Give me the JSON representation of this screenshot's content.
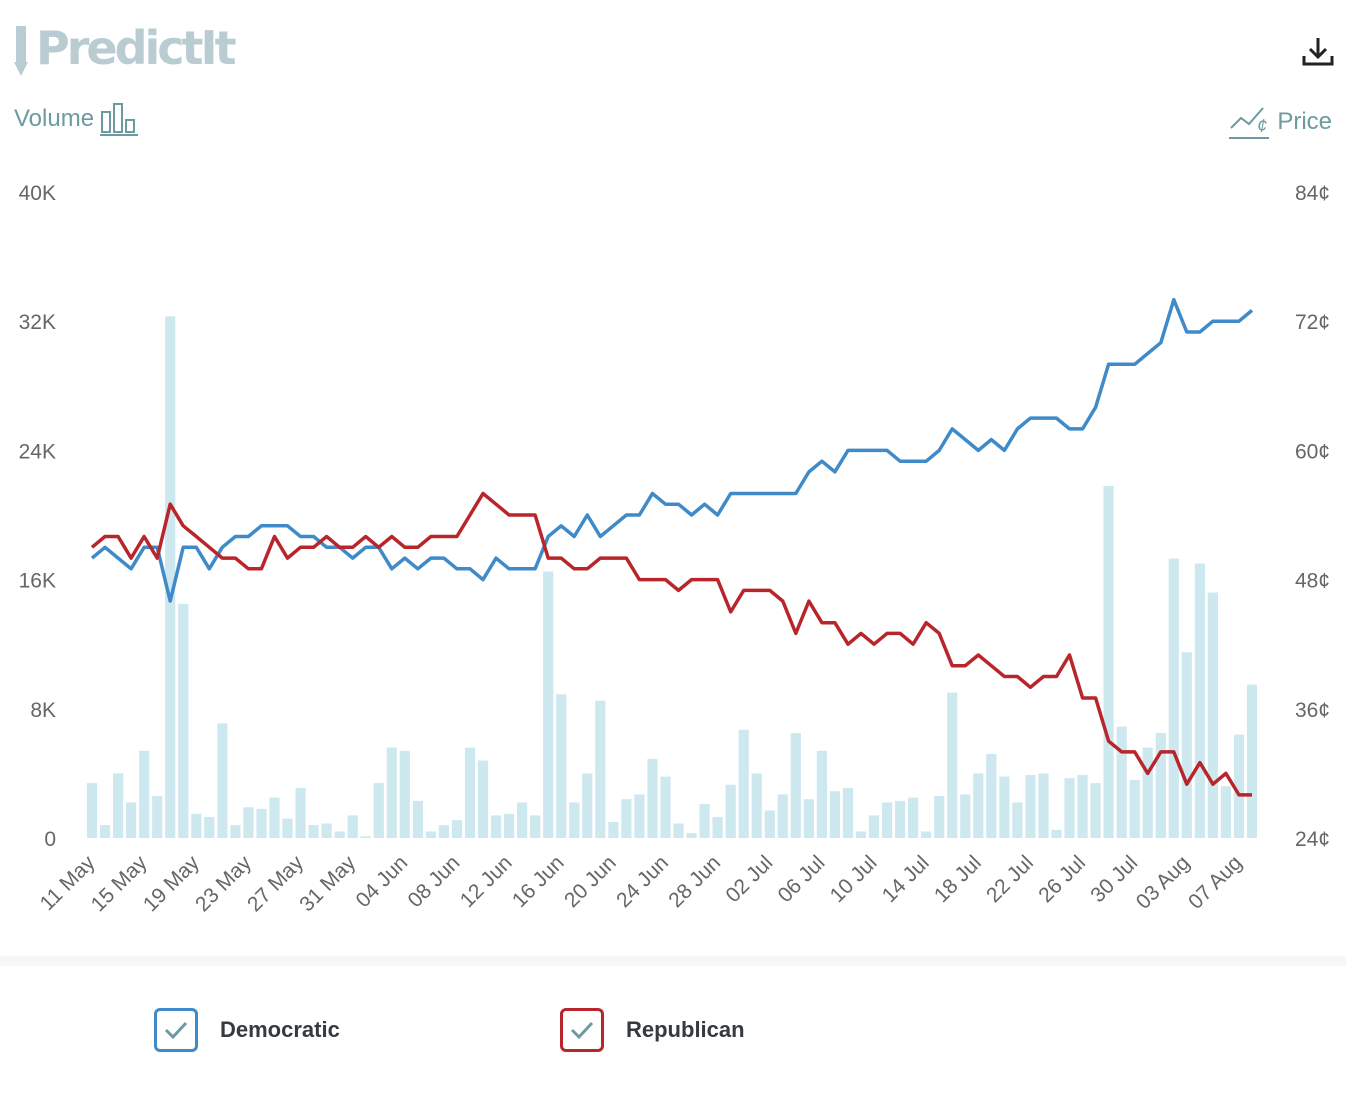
{
  "header": {
    "logo_text": "PredictIt",
    "volume_label": "Volume",
    "price_label": "Price",
    "download_icon": "download-icon"
  },
  "colors": {
    "democratic": "#3f8ac8",
    "republican": "#b8262b",
    "volume_bar": "#cde8ee",
    "axis_text": "#666666",
    "accent": "#6c9aa0"
  },
  "chart_data": {
    "type": "bar+line",
    "x": [
      "11 May",
      "12 May",
      "13 May",
      "14 May",
      "15 May",
      "16 May",
      "17 May",
      "18 May",
      "19 May",
      "20 May",
      "21 May",
      "22 May",
      "23 May",
      "24 May",
      "25 May",
      "26 May",
      "27 May",
      "28 May",
      "29 May",
      "30 May",
      "31 May",
      "01 Jun",
      "02 Jun",
      "03 Jun",
      "04 Jun",
      "05 Jun",
      "06 Jun",
      "07 Jun",
      "08 Jun",
      "09 Jun",
      "10 Jun",
      "11 Jun",
      "12 Jun",
      "13 Jun",
      "14 Jun",
      "15 Jun",
      "16 Jun",
      "17 Jun",
      "18 Jun",
      "19 Jun",
      "20 Jun",
      "21 Jun",
      "22 Jun",
      "23 Jun",
      "24 Jun",
      "25 Jun",
      "26 Jun",
      "27 Jun",
      "28 Jun",
      "29 Jun",
      "30 Jun",
      "01 Jul",
      "02 Jul",
      "03 Jul",
      "04 Jul",
      "05 Jul",
      "06 Jul",
      "07 Jul",
      "08 Jul",
      "09 Jul",
      "10 Jul",
      "11 Jul",
      "12 Jul",
      "13 Jul",
      "14 Jul",
      "15 Jul",
      "16 Jul",
      "17 Jul",
      "18 Jul",
      "19 Jul",
      "20 Jul",
      "21 Jul",
      "22 Jul",
      "23 Jul",
      "24 Jul",
      "25 Jul",
      "26 Jul",
      "27 Jul",
      "28 Jul",
      "29 Jul",
      "30 Jul",
      "31 Jul",
      "01 Aug",
      "02 Aug",
      "03 Aug",
      "04 Aug",
      "05 Aug",
      "06 Aug",
      "07 Aug",
      "08 Aug"
    ],
    "xticks": [
      "11 May",
      "15 May",
      "19 May",
      "23 May",
      "27 May",
      "31 May",
      "04 Jun",
      "08 Jun",
      "12 Jun",
      "16 Jun",
      "20 Jun",
      "24 Jun",
      "28 Jun",
      "02 Jul",
      "06 Jul",
      "10 Jul",
      "14 Jul",
      "18 Jul",
      "22 Jul",
      "26 Jul",
      "30 Jul",
      "03 Aug",
      "07 Aug"
    ],
    "volume": [
      3400,
      800,
      4000,
      2200,
      5400,
      2600,
      32300,
      14500,
      1500,
      1300,
      7100,
      800,
      1900,
      1800,
      2500,
      1200,
      3100,
      800,
      900,
      400,
      1400,
      100,
      3400,
      5600,
      5400,
      2300,
      400,
      800,
      1100,
      5600,
      4800,
      1400,
      1500,
      2200,
      1400,
      16500,
      8900,
      2200,
      4000,
      8500,
      1000,
      2400,
      2700,
      4900,
      3800,
      900,
      300,
      2100,
      1300,
      3300,
      6700,
      4000,
      1700,
      2700,
      6500,
      2400,
      5400,
      2900,
      3100,
      400,
      1400,
      2200,
      2300,
      2500,
      400,
      2600,
      9000,
      2700,
      4000,
      5200,
      3800,
      2200,
      3900,
      4000,
      500,
      3700,
      3900,
      3400,
      21800,
      6900,
      3600,
      5600,
      6500,
      17300,
      11500,
      17000,
      15200,
      3200,
      6400,
      9500
    ],
    "series": [
      {
        "name": "Democratic",
        "values": [
          50,
          51,
          50,
          49,
          51,
          51,
          46,
          51,
          51,
          49,
          51,
          52,
          52,
          53,
          53,
          53,
          52,
          52,
          51,
          51,
          50,
          51,
          51,
          49,
          50,
          49,
          50,
          50,
          49,
          49,
          48,
          50,
          49,
          49,
          49,
          52,
          53,
          52,
          54,
          52,
          53,
          54,
          54,
          56,
          55,
          55,
          54,
          55,
          54,
          56,
          56,
          56,
          56,
          56,
          56,
          58,
          59,
          58,
          60,
          60,
          60,
          60,
          59,
          59,
          59,
          60,
          62,
          61,
          60,
          61,
          60,
          62,
          63,
          63,
          63,
          62,
          62,
          64,
          68,
          68,
          68,
          69,
          70,
          74,
          71,
          71,
          72,
          72,
          72,
          73
        ]
      },
      {
        "name": "Republican",
        "values": [
          51,
          52,
          52,
          50,
          52,
          50,
          55,
          53,
          52,
          51,
          50,
          50,
          49,
          49,
          52,
          50,
          51,
          51,
          52,
          51,
          51,
          52,
          51,
          52,
          51,
          51,
          52,
          52,
          52,
          54,
          56,
          55,
          54,
          54,
          54,
          50,
          50,
          49,
          49,
          50,
          50,
          50,
          48,
          48,
          48,
          47,
          48,
          48,
          48,
          45,
          47,
          47,
          47,
          46,
          43,
          46,
          44,
          44,
          42,
          43,
          42,
          43,
          43,
          42,
          44,
          43,
          40,
          40,
          41,
          40,
          39,
          39,
          38,
          39,
          39,
          41,
          37,
          37,
          33,
          32,
          32,
          30,
          32,
          32,
          29,
          31,
          29,
          30,
          28,
          28
        ]
      }
    ],
    "yleft": {
      "ticks": [
        "0",
        "8K",
        "16K",
        "24K",
        "32K",
        "40K"
      ],
      "range": [
        0,
        40000
      ]
    },
    "yright": {
      "ticks": [
        "24¢",
        "36¢",
        "48¢",
        "60¢",
        "72¢",
        "84¢"
      ],
      "range": [
        24,
        84
      ]
    }
  },
  "legend": {
    "items": [
      {
        "label": "Democratic"
      },
      {
        "label": "Republican"
      }
    ]
  }
}
